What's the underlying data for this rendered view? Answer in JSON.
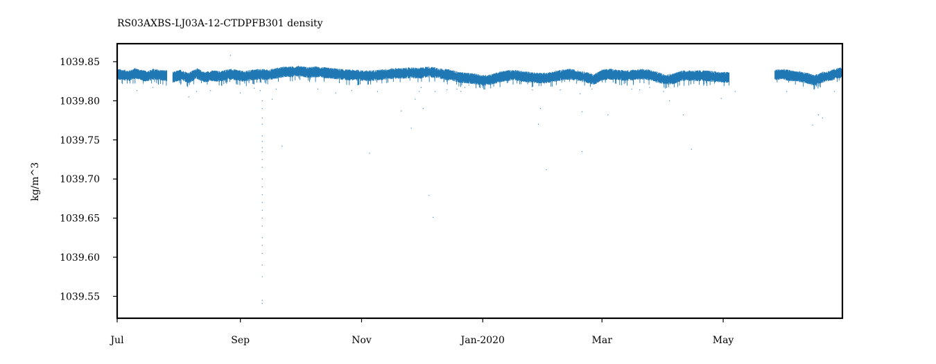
{
  "chart_data": {
    "type": "line",
    "title": "RS03AXBS-LJ03A-12-CTDPFB301 density",
    "xlabel": "",
    "ylabel": "kg/m^3",
    "x_range": [
      "2019-07-01",
      "2020-06-30"
    ],
    "ylim": [
      1039.522,
      1039.873
    ],
    "grid": false,
    "series_color": "#1f77b4",
    "x_ticks": [
      {
        "date": "2019-07-01",
        "label": "Jul"
      },
      {
        "date": "2019-09-01",
        "label": "Sep"
      },
      {
        "date": "2019-11-01",
        "label": "Nov"
      },
      {
        "date": "2020-01-01",
        "label": "Jan-2020"
      },
      {
        "date": "2020-03-01",
        "label": "Mar"
      },
      {
        "date": "2020-05-01",
        "label": "May"
      }
    ],
    "y_ticks": [
      {
        "value": 1039.85,
        "label": "1039.85"
      },
      {
        "value": 1039.8,
        "label": "1039.80"
      },
      {
        "value": 1039.75,
        "label": "1039.75"
      },
      {
        "value": 1039.7,
        "label": "1039.70"
      },
      {
        "value": 1039.65,
        "label": "1039.65"
      },
      {
        "value": 1039.6,
        "label": "1039.60"
      },
      {
        "value": 1039.55,
        "label": "1039.55"
      }
    ],
    "series": [
      {
        "name": "density",
        "segments": [
          {
            "start": "2019-07-01",
            "end": "2019-07-26",
            "points": [
              [
                0,
                1039.834
              ],
              [
                3,
                1039.833
              ],
              [
                6,
                1039.832
              ],
              [
                9,
                1039.835
              ],
              [
                12,
                1039.833
              ],
              [
                15,
                1039.831
              ],
              [
                18,
                1039.834
              ],
              [
                21,
                1039.833
              ],
              [
                25,
                1039.832
              ]
            ]
          },
          {
            "start": "2019-07-29",
            "end": "2020-05-08",
            "points": [
              [
                28,
                1039.83
              ],
              [
                32,
                1039.833
              ],
              [
                36,
                1039.829
              ],
              [
                40,
                1039.835
              ],
              [
                44,
                1039.83
              ],
              [
                48,
                1039.832
              ],
              [
                52,
                1039.831
              ],
              [
                56,
                1039.834
              ],
              [
                60,
                1039.833
              ],
              [
                64,
                1039.831
              ],
              [
                68,
                1039.833
              ],
              [
                72,
                1039.834
              ],
              [
                76,
                1039.833
              ],
              [
                80,
                1039.835
              ],
              [
                84,
                1039.837
              ],
              [
                88,
                1039.837
              ],
              [
                92,
                1039.838
              ],
              [
                96,
                1039.836
              ],
              [
                100,
                1039.837
              ],
              [
                104,
                1039.836
              ],
              [
                108,
                1039.835
              ],
              [
                112,
                1039.834
              ],
              [
                116,
                1039.833
              ],
              [
                120,
                1039.833
              ],
              [
                124,
                1039.832
              ],
              [
                128,
                1039.832
              ],
              [
                132,
                1039.833
              ],
              [
                136,
                1039.834
              ],
              [
                140,
                1039.835
              ],
              [
                144,
                1039.835
              ],
              [
                148,
                1039.836
              ],
              [
                152,
                1039.835
              ],
              [
                156,
                1039.837
              ],
              [
                160,
                1039.836
              ],
              [
                164,
                1039.834
              ],
              [
                168,
                1039.833
              ],
              [
                172,
                1039.83
              ],
              [
                176,
                1039.829
              ],
              [
                180,
                1039.828
              ],
              [
                184,
                1039.826
              ],
              [
                188,
                1039.827
              ],
              [
                192,
                1039.83
              ],
              [
                196,
                1039.832
              ],
              [
                200,
                1039.833
              ],
              [
                204,
                1039.831
              ],
              [
                208,
                1039.83
              ],
              [
                212,
                1039.829
              ],
              [
                216,
                1039.829
              ],
              [
                220,
                1039.831
              ],
              [
                224,
                1039.833
              ],
              [
                228,
                1039.834
              ],
              [
                232,
                1039.832
              ],
              [
                236,
                1039.83
              ],
              [
                240,
                1039.827
              ],
              [
                244,
                1039.833
              ],
              [
                248,
                1039.834
              ],
              [
                252,
                1039.833
              ],
              [
                256,
                1039.832
              ],
              [
                260,
                1039.833
              ],
              [
                264,
                1039.834
              ],
              [
                268,
                1039.833
              ],
              [
                272,
                1039.83
              ],
              [
                276,
                1039.827
              ],
              [
                280,
                1039.828
              ],
              [
                284,
                1039.832
              ],
              [
                288,
                1039.832
              ],
              [
                292,
                1039.832
              ],
              [
                296,
                1039.832
              ],
              [
                300,
                1039.831
              ],
              [
                304,
                1039.83
              ],
              [
                308,
                1039.83
              ]
            ]
          },
          {
            "start": "2020-05-31",
            "end": "2020-06-30",
            "points": [
              [
                331,
                1039.833
              ],
              [
                335,
                1039.834
              ],
              [
                339,
                1039.832
              ],
              [
                343,
                1039.831
              ],
              [
                347,
                1039.829
              ],
              [
                351,
                1039.826
              ],
              [
                355,
                1039.83
              ],
              [
                359,
                1039.832
              ],
              [
                362,
                1039.835
              ],
              [
                365,
                1039.836
              ]
            ]
          }
        ]
      }
    ],
    "outliers": [
      [
        10,
        1039.813
      ],
      [
        18,
        1039.817
      ],
      [
        36,
        1039.805
      ],
      [
        40,
        1039.812
      ],
      [
        47,
        1039.813
      ],
      [
        57,
        1039.858
      ],
      [
        62,
        1039.81
      ],
      [
        69,
        1039.816
      ],
      [
        72,
        1039.813
      ],
      [
        73,
        1039.8
      ],
      [
        73,
        1039.79
      ],
      [
        73,
        1039.778
      ],
      [
        73,
        1039.77
      ],
      [
        73,
        1039.755
      ],
      [
        73,
        1039.748
      ],
      [
        73,
        1039.74
      ],
      [
        73,
        1039.735
      ],
      [
        73,
        1039.725
      ],
      [
        73,
        1039.715
      ],
      [
        73,
        1039.7
      ],
      [
        73,
        1039.69
      ],
      [
        73,
        1039.68
      ],
      [
        73,
        1039.67
      ],
      [
        73,
        1039.66
      ],
      [
        73,
        1039.65
      ],
      [
        73,
        1039.64
      ],
      [
        73,
        1039.625
      ],
      [
        73,
        1039.615
      ],
      [
        73,
        1039.605
      ],
      [
        73,
        1039.59
      ],
      [
        73,
        1039.575
      ],
      [
        73,
        1039.545
      ],
      [
        73,
        1039.541
      ],
      [
        78,
        1039.802
      ],
      [
        80,
        1039.815
      ],
      [
        83,
        1039.742
      ],
      [
        101,
        1039.815
      ],
      [
        110,
        1039.81
      ],
      [
        118,
        1039.813
      ],
      [
        127,
        1039.733
      ],
      [
        131,
        1039.812
      ],
      [
        143,
        1039.787
      ],
      [
        148,
        1039.765
      ],
      [
        150,
        1039.802
      ],
      [
        152,
        1039.812
      ],
      [
        153,
        1039.817
      ],
      [
        154,
        1039.79
      ],
      [
        157,
        1039.679
      ],
      [
        159,
        1039.651
      ],
      [
        160,
        1039.812
      ],
      [
        166,
        1039.814
      ],
      [
        171,
        1039.815
      ],
      [
        173,
        1039.812
      ],
      [
        175,
        1039.817
      ],
      [
        177,
        1039.82
      ],
      [
        185,
        1039.815
      ],
      [
        209,
        1039.814
      ],
      [
        212,
        1039.77
      ],
      [
        213,
        1039.79
      ],
      [
        216,
        1039.712
      ],
      [
        223,
        1039.814
      ],
      [
        233,
        1039.809
      ],
      [
        234,
        1039.786
      ],
      [
        234,
        1039.735
      ],
      [
        239,
        1039.815
      ],
      [
        247,
        1039.782
      ],
      [
        259,
        1039.815
      ],
      [
        263,
        1039.814
      ],
      [
        268,
        1039.817
      ],
      [
        275,
        1039.812
      ],
      [
        278,
        1039.8
      ],
      [
        285,
        1039.782
      ],
      [
        289,
        1039.738
      ],
      [
        304,
        1039.803
      ],
      [
        311,
        1039.812
      ],
      [
        337,
        1039.812
      ],
      [
        350,
        1039.769
      ],
      [
        353,
        1039.782
      ],
      [
        355,
        1039.778
      ],
      [
        361,
        1039.812
      ]
    ]
  }
}
